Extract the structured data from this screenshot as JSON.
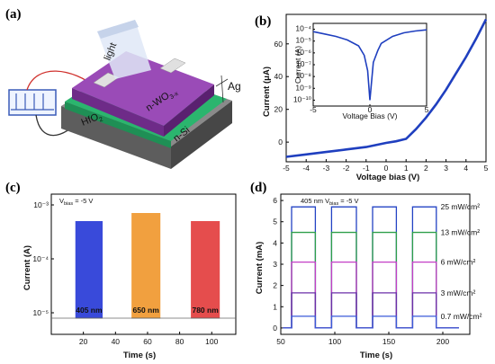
{
  "panels": [
    {
      "id": "a",
      "label": "(a)"
    },
    {
      "id": "b",
      "label": "(b)"
    },
    {
      "id": "c",
      "label": "(c)"
    },
    {
      "id": "d",
      "label": "(d)"
    }
  ],
  "device": {
    "light_label": "light",
    "top_layer": "n-WO",
    "top_layer_sub": "3-x",
    "electrode": "Ag",
    "oxide": "HfO",
    "oxide_sub": "2",
    "substrate": "n-Si",
    "colors": {
      "wo3": "#8e3fa8",
      "hfo2": "#2bb56e",
      "si": "#7c7c7c",
      "ag": "#d8d8d8"
    }
  },
  "chart_data": [
    {
      "id": "b",
      "type": "line",
      "xlabel": "Voltage bias (V)",
      "ylabel": "Current (μA)",
      "xlim": [
        -5,
        5
      ],
      "ylim": [
        -12,
        78
      ],
      "xticks": [
        "-5",
        "-4",
        "-3",
        "-2",
        "-1",
        "0",
        "1",
        "2",
        "3",
        "4",
        "5"
      ],
      "yticks": [
        "0",
        "20",
        "40",
        "60"
      ],
      "series": [
        {
          "color": "#1f3fbf",
          "x": [
            -5,
            -4,
            -3,
            -2,
            -1,
            0,
            0.5,
            1,
            1.5,
            2,
            2.5,
            3,
            3.5,
            4,
            4.5,
            5
          ],
          "y": [
            -9,
            -7.5,
            -6,
            -4.5,
            -3,
            -0.5,
            0.5,
            2,
            8,
            15,
            23,
            32,
            42,
            52,
            63,
            75
          ]
        }
      ],
      "inset": {
        "xlabel": "Voltage Bias (V)",
        "ylabel": "Current (A)",
        "xlim": [
          -5,
          5
        ],
        "xticks": [
          "-5",
          "0",
          "5"
        ],
        "yticks": [
          "10⁻⁴",
          "10⁻⁵",
          "10⁻⁶",
          "10⁻⁷",
          "10⁻⁸",
          "10⁻⁹",
          "10⁻¹⁰"
        ],
        "log_ylim": [
          -10.5,
          -3.5
        ],
        "x": [
          -5,
          -4,
          -3,
          -2,
          -1,
          -0.5,
          -0.2,
          0,
          0.3,
          0.7,
          1,
          2,
          3,
          4,
          5
        ],
        "log_y": [
          -4.2,
          -4.4,
          -4.6,
          -4.9,
          -5.4,
          -6.2,
          -7.5,
          -10,
          -6.8,
          -5.8,
          -5.2,
          -4.6,
          -4.3,
          -4.15,
          -4.05
        ]
      }
    },
    {
      "id": "c",
      "type": "line",
      "xlabel": "Time (s)",
      "ylabel": "Current (A)",
      "annotation": "V",
      "annotation_sub": "bias",
      "annotation_rest": " = -5 V",
      "xlim": [
        0,
        115
      ],
      "log_ylim": [
        -5.4,
        -2.8
      ],
      "xticks": [
        "20",
        "40",
        "60",
        "80",
        "100"
      ],
      "yticks": [
        "10⁻³",
        "10⁻⁴",
        "10⁻⁵"
      ],
      "series": [
        {
          "name": "405 nm",
          "color": "#2436d6",
          "start": 15,
          "end": 32
        },
        {
          "name": "650 nm",
          "color": "#f0962a",
          "start": 50,
          "end": 68
        },
        {
          "name": "780 nm",
          "color": "#e23a3a",
          "start": 87,
          "end": 105
        }
      ],
      "on_log": [
        -3.3,
        -3.15,
        -3.3
      ],
      "off_log": -5.1
    },
    {
      "id": "d",
      "type": "line",
      "xlabel": "Time (s)",
      "ylabel": "Current (mA)",
      "annotation": "405 nm   V",
      "annotation_sub": "bias",
      "annotation_rest": " = -5 V",
      "xlim": [
        50,
        225
      ],
      "ylim": [
        -0.3,
        6.3
      ],
      "xticks": [
        "50",
        "100",
        "150",
        "200"
      ],
      "yticks": [
        "0",
        "1",
        "2",
        "3",
        "4",
        "5",
        "6"
      ],
      "pulses": [
        [
          60,
          82
        ],
        [
          97,
          120
        ],
        [
          135,
          157
        ],
        [
          172,
          194
        ]
      ],
      "series": [
        {
          "name": "25 mW/cm²",
          "color": "#2343c4",
          "level": 5.7
        },
        {
          "name": "13 mW/cm²",
          "color": "#2e9f4a",
          "level": 4.5
        },
        {
          "name": "6 mW/cm²",
          "color": "#c33fc6",
          "level": 3.1
        },
        {
          "name": "3 mW/cm²",
          "color": "#6b2fa8",
          "level": 1.65
        },
        {
          "name": "0.7 mW/cm²",
          "color": "#3a5ad8",
          "level": 0.55
        }
      ]
    }
  ]
}
